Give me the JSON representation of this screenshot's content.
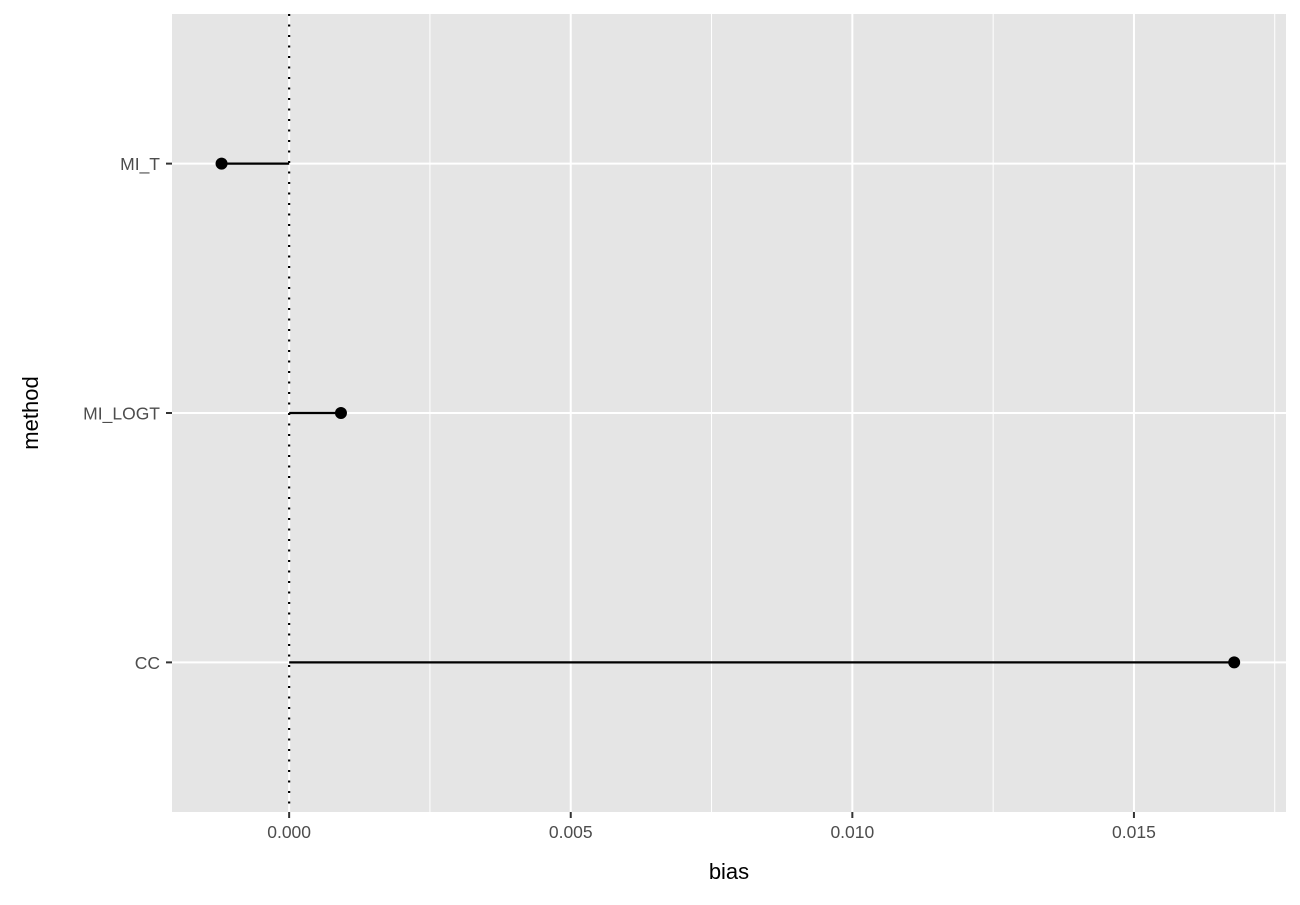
{
  "chart_data": {
    "type": "lollipop",
    "xlabel": "bias",
    "ylabel": "method",
    "categories": [
      "MI_T",
      "MI_LOGT",
      "CC"
    ],
    "values": [
      -0.0012,
      0.00092,
      0.01678
    ],
    "xlim": [
      -0.00208,
      0.0177
    ],
    "xticks": [
      0.0,
      0.005,
      0.01,
      0.015
    ],
    "xtick_labels": [
      "0.000",
      "0.005",
      "0.010",
      "0.015"
    ],
    "reference_line": {
      "x": 0,
      "style": "dotted"
    },
    "grid": true,
    "colors": {
      "panel": "#e5e5e5",
      "grid": "#ffffff",
      "mark": "#000000",
      "axis_text": "#4d4d4d"
    }
  }
}
